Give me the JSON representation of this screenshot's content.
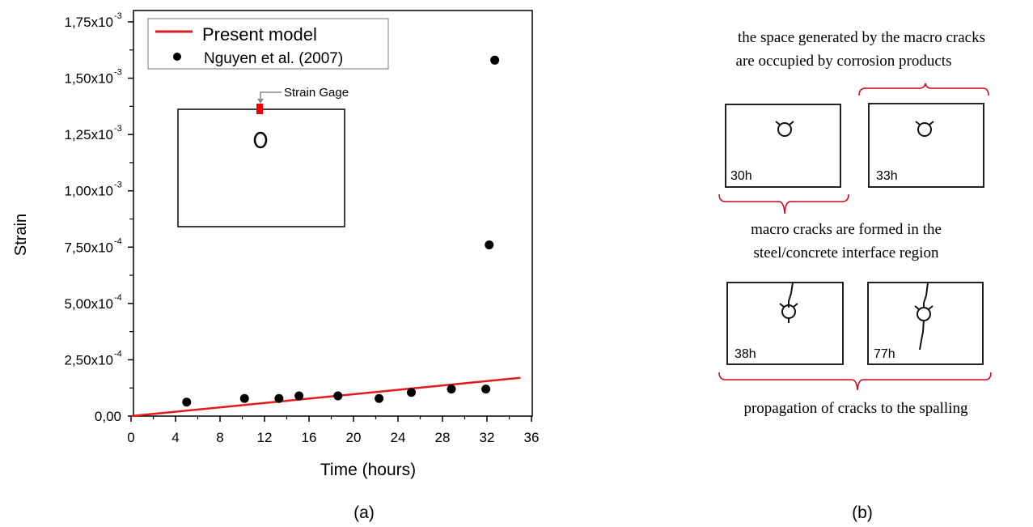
{
  "chart_data": {
    "type": "scatter",
    "xlabel": "Time (hours)",
    "ylabel": "Strain",
    "xlim": [
      0,
      36
    ],
    "ylim": [
      0,
      0.00175
    ],
    "x_ticks": [
      "0",
      "4",
      "8",
      "12",
      "16",
      "20",
      "24",
      "28",
      "32",
      "36"
    ],
    "x_tick_values": [
      0,
      4,
      8,
      12,
      16,
      20,
      24,
      28,
      32,
      36
    ],
    "y_ticks": [
      {
        "value": 0,
        "mantissa": "0,00",
        "exp": ""
      },
      {
        "value": 0.00025,
        "mantissa": "2,50x10",
        "exp": "-4"
      },
      {
        "value": 0.0005,
        "mantissa": "5,00x10",
        "exp": "-4"
      },
      {
        "value": 0.00075,
        "mantissa": "7,50x10",
        "exp": "-4"
      },
      {
        "value": 0.001,
        "mantissa": "1,00x10",
        "exp": "-3"
      },
      {
        "value": 0.00125,
        "mantissa": "1,25x10",
        "exp": "-3"
      },
      {
        "value": 0.0015,
        "mantissa": "1,50x10",
        "exp": "-3"
      },
      {
        "value": 0.00175,
        "mantissa": "1,75x10",
        "exp": "-3"
      }
    ],
    "legend_position": "top-left",
    "series": [
      {
        "name": "Present model",
        "type": "line",
        "color": "#e31a1c",
        "x": [
          0,
          35
        ],
        "y": [
          0,
          0.00017
        ]
      },
      {
        "name": "Nguyen et al. (2007)",
        "type": "scatter",
        "color": "#000000",
        "x": [
          5.0,
          10.2,
          13.3,
          15.1,
          18.6,
          22.3,
          25.2,
          28.8,
          31.9,
          32.2,
          32.7
        ],
        "y": [
          6.2e-05,
          7.8e-05,
          7.8e-05,
          9e-05,
          9e-05,
          7.8e-05,
          0.000105,
          0.00012,
          0.00012,
          0.00076,
          0.00158
        ]
      }
    ],
    "annotation": "Strain Gage"
  },
  "captions": {
    "a": "(a)",
    "b": "(b)"
  },
  "panel_b": {
    "top_text": [
      "the space generated by the macro cracks",
      "are occupied by corrosion products"
    ],
    "middle_text": [
      "macro cracks are formed in the",
      "steel/concrete interface region"
    ],
    "bottom_text": "propagation of cracks to the spalling",
    "stages": [
      "30h",
      "33h",
      "38h",
      "77h"
    ]
  },
  "colors": {
    "accent": "#d0021b"
  }
}
